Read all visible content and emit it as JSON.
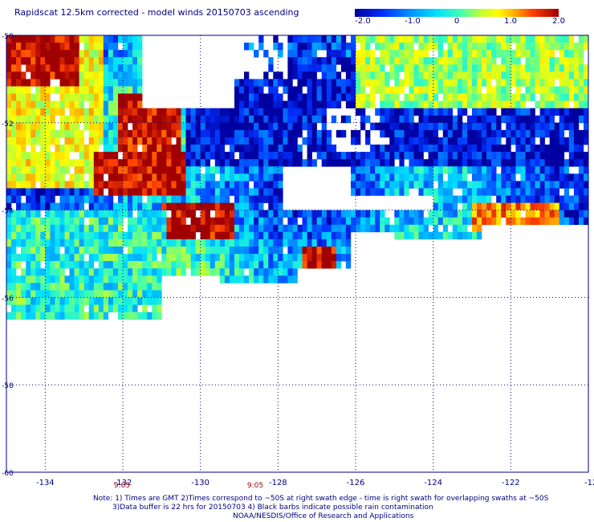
{
  "title": "Rapidscat 12.5km corrected - model winds 20150703 ascending",
  "colorbar": {
    "ticks": [
      "-2.0",
      "-1.0",
      "0",
      "1.0",
      "2.0"
    ],
    "tick_values": [
      -2,
      -1,
      0,
      1,
      2
    ],
    "colors": [
      "#0000a0",
      "#0030ff",
      "#0090ff",
      "#00e0ff",
      "#40ffb0",
      "#c0ff30",
      "#ffff00",
      "#ffb000",
      "#ff4000",
      "#a00000"
    ]
  },
  "notes": {
    "line1": "Note: 1) Times are GMT 2)Times correspond to ~50S at right swath edge - time is right swath for overlapping swaths at ~50S",
    "line2": "3)Data buffer is 22 hrs for 20150703 4) Black barbs indicate possible rain contamination",
    "line3": "NOAA/NESDIS/Office of Research and Applications"
  },
  "time_labels": [
    {
      "text": "9:05",
      "lon": -132
    },
    {
      "text": "9:05",
      "lon": -128
    }
  ],
  "chart_data": {
    "type": "heatmap",
    "title": "Rapidscat 12.5km corrected - model winds 20150703 ascending",
    "x_axis": {
      "range": [
        -135,
        -120
      ],
      "ticks": [
        -134,
        -132,
        -130,
        -128,
        -126,
        -124,
        -122
      ],
      "tick_labels": [
        "-134",
        "-132",
        "-130",
        "-128",
        "-126",
        "-124",
        "-122"
      ],
      "edge_label": "-12",
      "grid": "dotted"
    },
    "y_axis": {
      "range": [
        -60,
        -50
      ],
      "ticks": [
        -50,
        -52,
        -54,
        -56,
        -58,
        -60
      ],
      "tick_labels": [
        "-50",
        "-52",
        "-54",
        "-56",
        "-58",
        "-60"
      ],
      "grid": "dotted"
    },
    "color_scale": {
      "min": -2.0,
      "max": 2.0
    },
    "regions": [
      {
        "lon": [
          -135,
          -133.2
        ],
        "lat": [
          -50,
          -51.1
        ],
        "value": 2.0
      },
      {
        "lon": [
          -132.2,
          -130.6
        ],
        "lat": [
          -51.2,
          -52.8
        ],
        "value": 1.9
      },
      {
        "lon": [
          -132.8,
          -130.4
        ],
        "lat": [
          -52.6,
          -53.6
        ],
        "value": 2.0
      },
      {
        "lon": [
          -131.0,
          -129.2
        ],
        "lat": [
          -53.8,
          -54.6
        ],
        "value": 2.0
      },
      {
        "lon": [
          -127.4,
          -126.6
        ],
        "lat": [
          -54.8,
          -55.2
        ],
        "value": 2.0
      },
      {
        "lon": [
          -130.4,
          -120
        ],
        "lat": [
          -50.4,
          -53.0
        ],
        "value": -1.8
      },
      {
        "lon": [
          -126,
          -120
        ],
        "lat": [
          -50,
          -51.6
        ],
        "value": 0.2
      },
      {
        "lon": [
          -135,
          -131
        ],
        "lat": [
          -54,
          -56.4
        ],
        "value": -0.4
      },
      {
        "lon": [
          -123,
          -120.8
        ],
        "lat": [
          -53.8,
          -54.4
        ],
        "value": 1.2
      }
    ]
  }
}
